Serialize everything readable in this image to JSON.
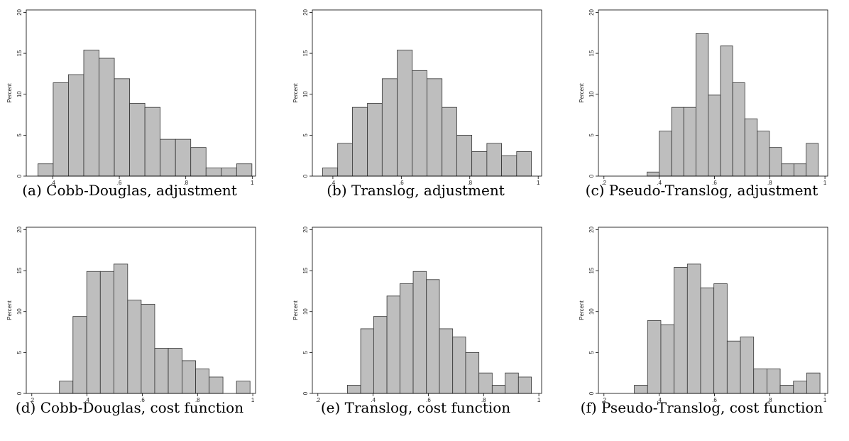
{
  "chart_data": [
    {
      "type": "histogram",
      "caption": "(a) Cobb-Douglas, adjustment",
      "ylabel": "Percent",
      "color": "#bebebe",
      "bins": [
        0.355,
        0.401,
        0.447,
        0.493,
        0.539,
        0.585,
        0.631,
        0.677,
        0.723,
        0.769,
        0.815,
        0.861,
        0.907,
        0.953,
        0.999
      ],
      "values": [
        1.5,
        11.4,
        12.4,
        15.4,
        14.4,
        11.9,
        8.9,
        8.4,
        4.5,
        4.5,
        3.5,
        1,
        1,
        1.5
      ],
      "xlim": [
        0.32,
        1.01
      ],
      "xticks": [
        {
          "value": 0.4,
          "label": ".4"
        },
        {
          "value": 0.6,
          "label": ".6"
        },
        {
          "value": 0.8,
          "label": ".8"
        },
        1
      ],
      "ylim": [
        0,
        20.3
      ],
      "yticks": [
        0,
        5,
        10,
        15,
        20
      ]
    },
    {
      "type": "histogram",
      "caption": "(b) Translog, adjustment",
      "ylabel": "Percent",
      "color": "#bebebe",
      "bins": [
        0.37,
        0.414,
        0.457,
        0.501,
        0.544,
        0.588,
        0.632,
        0.675,
        0.719,
        0.762,
        0.806,
        0.85,
        0.893,
        0.937,
        0.98
      ],
      "values": [
        1,
        4,
        8.4,
        8.9,
        11.9,
        15.4,
        12.9,
        11.9,
        8.4,
        5,
        3,
        4,
        2.5,
        3
      ],
      "xlim": [
        0.34,
        1.01
      ],
      "xticks": [
        {
          "value": 0.4,
          "label": ".4"
        },
        {
          "value": 0.6,
          "label": ".6"
        },
        {
          "value": 0.8,
          "label": ".8"
        },
        1
      ],
      "ylim": [
        0,
        20.3
      ],
      "yticks": [
        0,
        5,
        10,
        15,
        20
      ]
    },
    {
      "type": "histogram",
      "caption": "(c) Pseudo-Translog, adjustment",
      "ylabel": "Percent",
      "color": "#bebebe",
      "bins": [
        0.356,
        0.4,
        0.445,
        0.489,
        0.533,
        0.578,
        0.622,
        0.666,
        0.71,
        0.755,
        0.799,
        0.843,
        0.888,
        0.932,
        0.976
      ],
      "values": [
        0.5,
        5.5,
        8.4,
        8.4,
        17.4,
        9.9,
        15.9,
        11.4,
        7,
        5.5,
        3.5,
        1.5,
        1.5,
        4
      ],
      "xlim": [
        0.18,
        1.01
      ],
      "xticks": [
        {
          "value": 0.2,
          "label": ".2"
        },
        {
          "value": 0.4,
          "label": ".4"
        },
        {
          "value": 0.6,
          "label": ".6"
        },
        {
          "value": 0.8,
          "label": ".8"
        },
        1
      ],
      "ylim": [
        0,
        20.3
      ],
      "yticks": [
        0,
        5,
        10,
        15,
        20
      ]
    },
    {
      "type": "histogram",
      "caption": "(d) Cobb-Douglas, cost function",
      "ylabel": "Percent",
      "color": "#bebebe",
      "bins": [
        0.3,
        0.349,
        0.399,
        0.448,
        0.497,
        0.547,
        0.596,
        0.645,
        0.694,
        0.744,
        0.793,
        0.842,
        0.892,
        0.941,
        0.99
      ],
      "values": [
        1.5,
        9.4,
        14.9,
        14.9,
        15.8,
        11.4,
        10.9,
        5.5,
        5.5,
        4,
        3,
        2,
        0,
        1.5
      ],
      "xlim": [
        0.18,
        1.01
      ],
      "xticks": [
        {
          "value": 0.2,
          "label": ".2"
        },
        {
          "value": 0.4,
          "label": ".4"
        },
        {
          "value": 0.6,
          "label": ".6"
        },
        {
          "value": 0.8,
          "label": ".8"
        },
        1
      ],
      "ylim": [
        0,
        20.3
      ],
      "yticks": [
        0,
        5,
        10,
        15,
        20
      ]
    },
    {
      "type": "histogram",
      "caption": "(e) Translog, cost function",
      "ylabel": "Percent",
      "color": "#bebebe",
      "bins": [
        0.307,
        0.355,
        0.402,
        0.45,
        0.497,
        0.545,
        0.593,
        0.64,
        0.688,
        0.735,
        0.783,
        0.831,
        0.878,
        0.926,
        0.973
      ],
      "values": [
        1,
        7.9,
        9.4,
        11.9,
        13.4,
        14.9,
        13.9,
        7.9,
        6.9,
        5,
        2.5,
        1,
        2.5,
        2
      ],
      "xlim": [
        0.18,
        1.01
      ],
      "xticks": [
        {
          "value": 0.2,
          "label": ".2"
        },
        {
          "value": 0.4,
          "label": ".4"
        },
        {
          "value": 0.6,
          "label": ".6"
        },
        {
          "value": 0.8,
          "label": ".8"
        },
        1
      ],
      "ylim": [
        0,
        20.3
      ],
      "yticks": [
        0,
        5,
        10,
        15,
        20
      ]
    },
    {
      "type": "histogram",
      "caption": "(f) Pseudo-Translog, cost function",
      "ylabel": "Percent",
      "color": "#bebebe",
      "bins": [
        0.31,
        0.358,
        0.406,
        0.454,
        0.502,
        0.55,
        0.598,
        0.646,
        0.694,
        0.742,
        0.79,
        0.838,
        0.886,
        0.934,
        0.982
      ],
      "values": [
        1,
        8.9,
        8.4,
        15.4,
        15.8,
        12.9,
        13.4,
        6.4,
        6.9,
        3,
        3,
        1,
        1.5,
        2.5
      ],
      "xlim": [
        0.18,
        1.01
      ],
      "xticks": [
        {
          "value": 0.2,
          "label": ".2"
        },
        {
          "value": 0.4,
          "label": ".4"
        },
        {
          "value": 0.6,
          "label": ".6"
        },
        {
          "value": 0.8,
          "label": ".8"
        },
        1
      ],
      "ylim": [
        0,
        20.3
      ],
      "yticks": [
        0,
        5,
        10,
        15,
        20
      ]
    }
  ]
}
